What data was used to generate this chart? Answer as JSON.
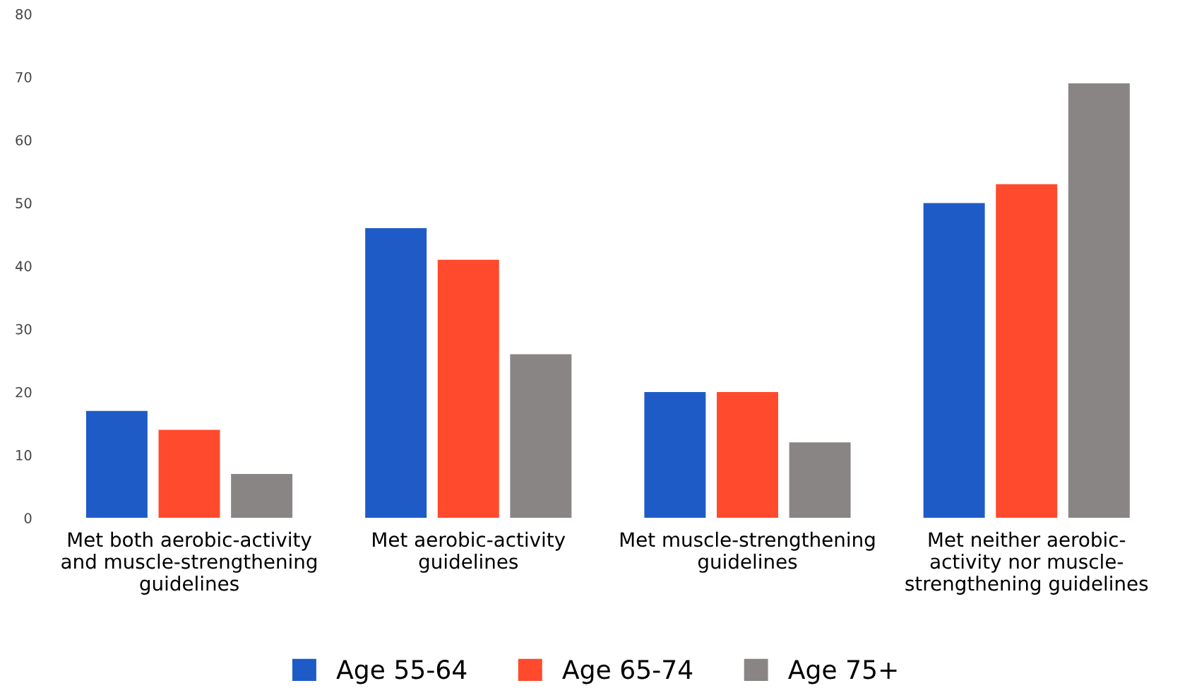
{
  "chart_data": {
    "type": "bar",
    "categories": [
      "Met both aerobic-activity and muscle-strengthening guidelines",
      "Met aerobic-activity guidelines",
      "Met muscle-strengthening guidelines",
      "Met neither aerobic-activity nor muscle-strengthening guidelines"
    ],
    "series": [
      {
        "name": "Age 55-64",
        "color": "#1f5bc6",
        "values": [
          17,
          46,
          20,
          50
        ]
      },
      {
        "name": "Age 65-74",
        "color": "#ff4a2e",
        "values": [
          14,
          41,
          20,
          53
        ]
      },
      {
        "name": "Age 75+",
        "color": "#8a8585",
        "values": [
          7,
          26,
          12,
          69
        ]
      }
    ],
    "ylim": [
      0,
      80
    ],
    "yticks": [
      0,
      10,
      20,
      30,
      40,
      50,
      60,
      70,
      80
    ],
    "grid": false,
    "legend": "bottom"
  }
}
